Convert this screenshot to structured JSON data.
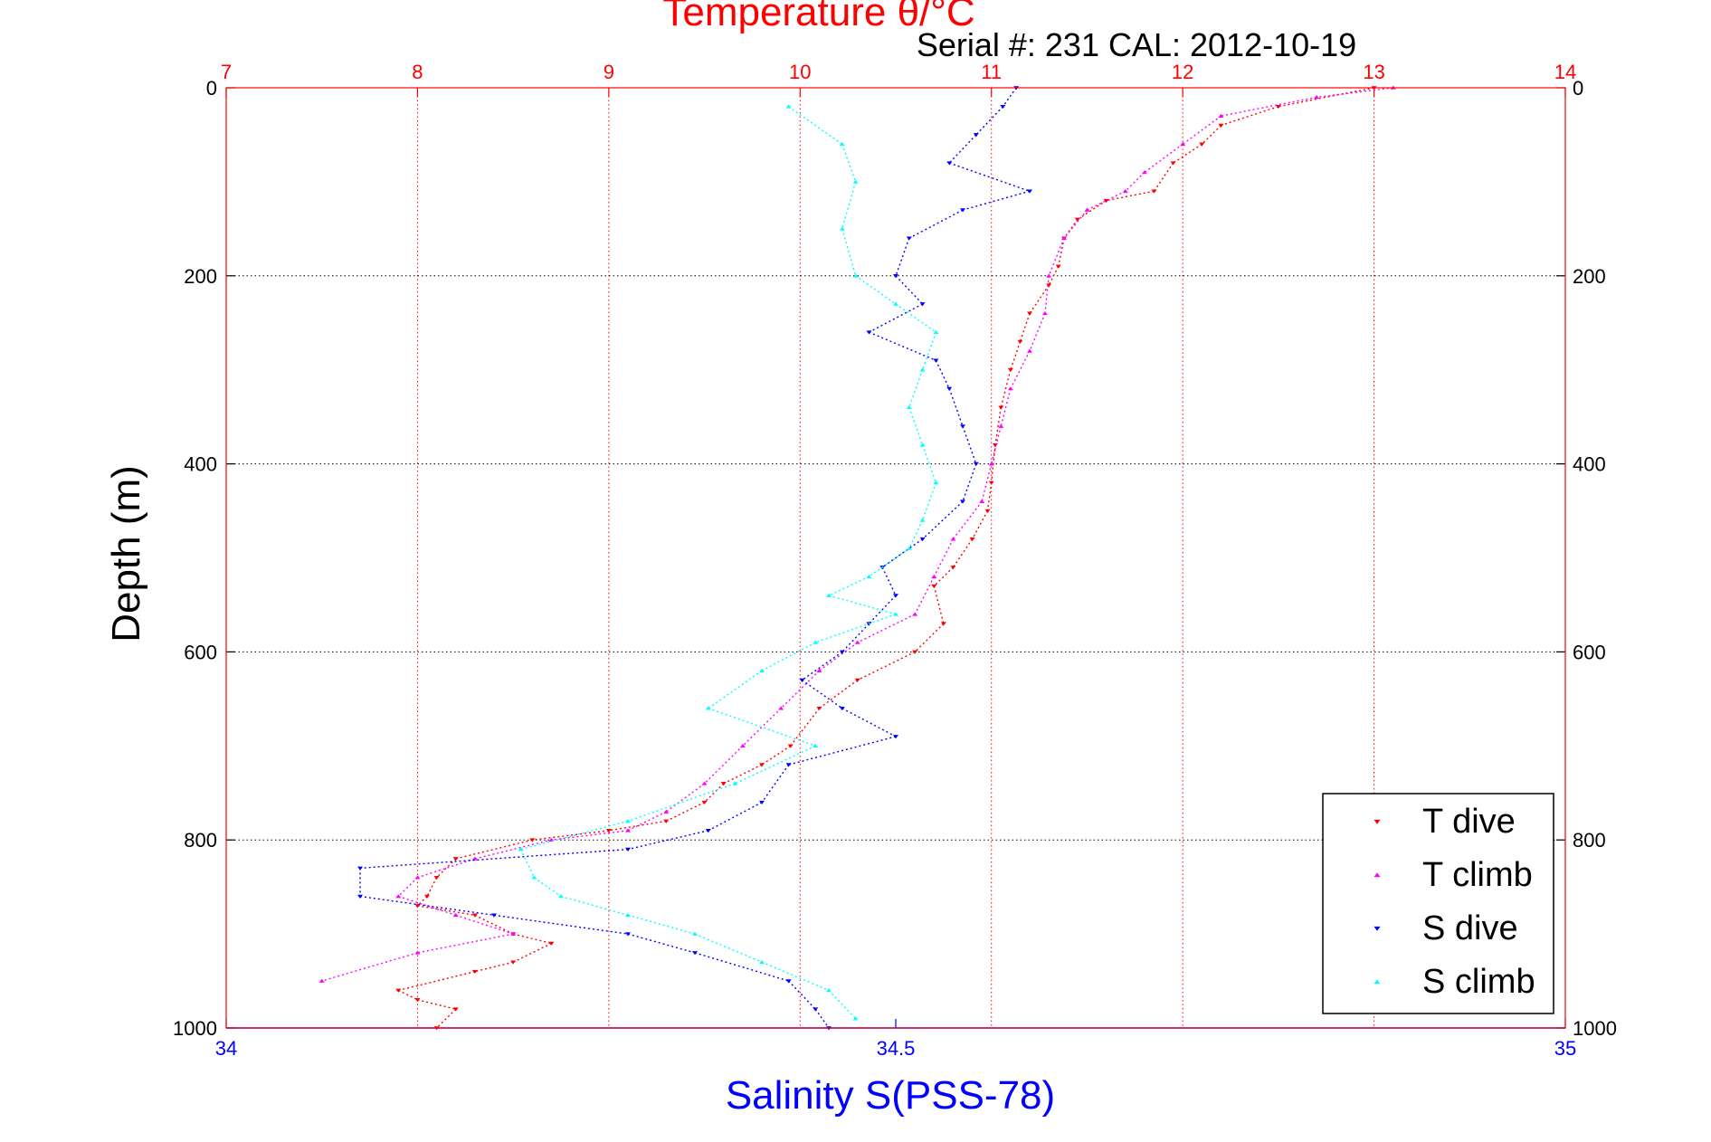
{
  "chart_data": {
    "type": "scatter",
    "title": "Temperature θ/°C",
    "subtitle": "Serial #: 231  CAL: 2012-10-19",
    "xlabel_top": "Temperature θ/°C",
    "xlabel_bottom": "Salinity S(PSS-78)",
    "ylabel": "Depth (m)",
    "temperature_axis": {
      "range": [
        7,
        14
      ],
      "ticks": [
        "7",
        "8",
        "9",
        "10",
        "11",
        "12",
        "13",
        "14"
      ]
    },
    "salinity_axis": {
      "range": [
        34,
        35
      ],
      "ticks": [
        "34",
        "34.5",
        "35"
      ]
    },
    "depth_axis": {
      "range": [
        0,
        1000
      ],
      "inverted": true,
      "ticks": [
        "0",
        "200",
        "400",
        "600",
        "800",
        "1000"
      ]
    },
    "grid": true,
    "legend_position": "bottom-right",
    "series": [
      {
        "name": "T dive",
        "color": "#ff0000",
        "marker": "triangle-down",
        "variable": "temperature",
        "x": [
          13.0,
          12.5,
          12.2,
          12.1,
          11.95,
          11.85,
          11.6,
          11.45,
          11.38,
          11.35,
          11.3,
          11.2,
          11.15,
          11.1,
          11.05,
          11.02,
          11.0,
          10.98,
          10.9,
          10.8,
          10.7,
          10.75,
          10.6,
          10.3,
          10.1,
          9.95,
          9.8,
          9.6,
          9.5,
          9.3,
          9.0,
          8.6,
          8.2,
          8.1,
          8.05,
          8.0,
          8.3,
          8.5,
          8.7,
          8.5,
          8.3,
          7.9,
          8.0,
          8.2,
          8.1
        ],
        "y": [
          0,
          20,
          40,
          60,
          80,
          110,
          120,
          140,
          160,
          190,
          210,
          240,
          270,
          300,
          340,
          380,
          420,
          450,
          480,
          510,
          530,
          570,
          600,
          630,
          660,
          700,
          720,
          740,
          760,
          780,
          790,
          800,
          820,
          840,
          860,
          870,
          880,
          900,
          910,
          930,
          940,
          960,
          970,
          980,
          1000
        ]
      },
      {
        "name": "T climb",
        "color": "#ff00ff",
        "marker": "triangle-up",
        "variable": "temperature",
        "x": [
          13.1,
          12.7,
          12.2,
          12.0,
          11.8,
          11.7,
          11.5,
          11.38,
          11.3,
          11.28,
          11.2,
          11.1,
          11.05,
          11.0,
          10.95,
          10.8,
          10.7,
          10.6,
          10.3,
          10.1,
          9.9,
          9.7,
          9.5,
          9.3,
          9.1,
          8.7,
          8.3,
          8.0,
          7.9,
          8.2,
          8.5,
          8.0,
          7.5
        ],
        "y": [
          0,
          10,
          30,
          60,
          90,
          110,
          130,
          160,
          200,
          240,
          280,
          320,
          360,
          400,
          440,
          480,
          520,
          560,
          590,
          620,
          660,
          700,
          740,
          770,
          790,
          800,
          820,
          840,
          860,
          880,
          900,
          920,
          950
        ]
      },
      {
        "name": "S dive",
        "color": "#0000ff",
        "marker": "triangle-down",
        "variable": "salinity",
        "x": [
          34.59,
          34.58,
          34.56,
          34.54,
          34.6,
          34.55,
          34.51,
          34.5,
          34.52,
          34.48,
          34.53,
          34.54,
          34.55,
          34.56,
          34.55,
          34.52,
          34.49,
          34.5,
          34.48,
          34.46,
          34.43,
          34.46,
          34.5,
          34.42,
          34.4,
          34.36,
          34.3,
          34.1,
          34.1,
          34.2,
          34.3,
          34.35,
          34.42,
          34.44,
          34.45
        ],
        "y": [
          0,
          20,
          50,
          80,
          110,
          130,
          160,
          200,
          230,
          260,
          290,
          320,
          360,
          400,
          440,
          480,
          510,
          540,
          570,
          600,
          630,
          660,
          690,
          720,
          760,
          790,
          810,
          830,
          860,
          880,
          900,
          920,
          950,
          980,
          1000
        ]
      },
      {
        "name": "S climb",
        "color": "#00ffff",
        "marker": "triangle-up",
        "variable": "salinity",
        "x": [
          34.42,
          34.46,
          34.47,
          34.46,
          34.47,
          34.5,
          34.53,
          34.52,
          34.51,
          34.52,
          34.53,
          34.52,
          34.51,
          34.48,
          34.45,
          34.5,
          34.44,
          34.4,
          34.36,
          34.44,
          34.38,
          34.3,
          34.22,
          34.23,
          34.25,
          34.3,
          34.35,
          34.4,
          34.45,
          34.47
        ],
        "y": [
          20,
          60,
          100,
          150,
          200,
          230,
          260,
          300,
          340,
          380,
          420,
          460,
          490,
          520,
          540,
          560,
          590,
          620,
          660,
          700,
          740,
          780,
          810,
          840,
          860,
          880,
          900,
          930,
          960,
          990
        ]
      }
    ]
  }
}
